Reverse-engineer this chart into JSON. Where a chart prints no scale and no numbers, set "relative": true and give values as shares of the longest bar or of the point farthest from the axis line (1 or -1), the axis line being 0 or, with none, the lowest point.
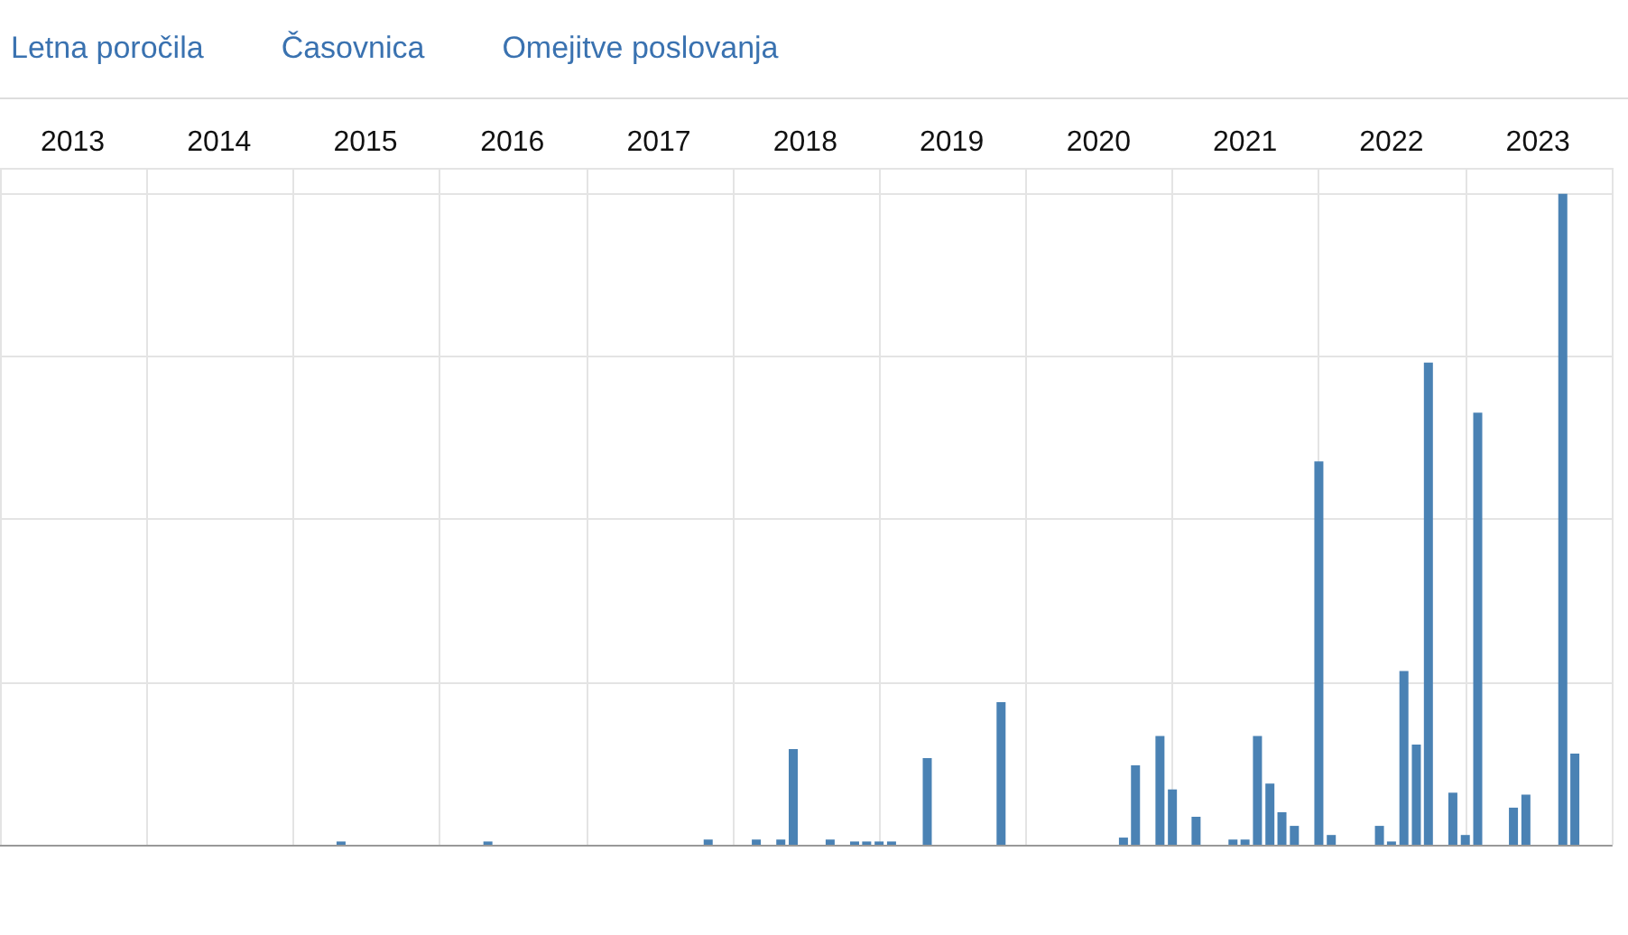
{
  "chart_data": {
    "type": "bar",
    "relative": true,
    "grid": true,
    "annotations": [
      "Letna poročila",
      "Časovnica",
      "Omejitve poslovanja"
    ],
    "x": [
      "2015-05",
      "2016-05",
      "2017-11",
      "2018-03",
      "2018-05",
      "2018-06",
      "2018-09",
      "2018-11",
      "2018-12",
      "2019-01",
      "2019-02",
      "2019-05",
      "2019-11",
      "2020-09",
      "2020-10",
      "2020-12",
      "2021-01",
      "2021-03",
      "2021-06",
      "2021-07",
      "2021-08",
      "2021-09",
      "2021-10",
      "2021-11",
      "2022-01",
      "2022-02",
      "2022-06",
      "2022-07",
      "2022-08",
      "2022-09",
      "2022-10",
      "2022-12",
      "2023-01",
      "2023-02",
      "2023-05",
      "2023-06",
      "2023-09",
      "2023-10"
    ],
    "values": [
      0.005,
      0.005,
      0.008,
      0.008,
      0.008,
      0.147,
      0.008,
      0.005,
      0.005,
      0.005,
      0.005,
      0.133,
      0.219,
      0.011,
      0.122,
      0.167,
      0.085,
      0.043,
      0.008,
      0.008,
      0.167,
      0.094,
      0.05,
      0.029,
      0.589,
      0.015,
      0.029,
      0.005,
      0.267,
      0.154,
      0.741,
      0.08,
      0.015,
      0.664,
      0.057,
      0.077,
      1.0,
      0.14
    ],
    "color": "#4a82b4",
    "xlim": [
      "2013-01",
      "2024-01"
    ],
    "xticks": [
      {
        "value": "2013",
        "label": null
      },
      {
        "value": "2014",
        "label": null
      },
      {
        "value": "2015",
        "label": null
      },
      {
        "value": "2016",
        "label": null
      },
      {
        "value": "2017",
        "label": null
      },
      {
        "value": "2018",
        "label": null
      },
      {
        "value": "2019",
        "label": null
      },
      {
        "value": "2020",
        "label": null
      },
      {
        "value": "2021",
        "label": null
      },
      {
        "value": "2022",
        "label": null
      },
      {
        "value": "2023",
        "label": null
      },
      {
        "value": "2024",
        "label": null
      },
      {
        "value": "2013-07",
        "label": "2013"
      },
      {
        "value": "2014-07",
        "label": "2014"
      },
      {
        "value": "2015-07",
        "label": "2015"
      },
      {
        "value": "2016-07",
        "label": "2016"
      },
      {
        "value": "2017-07",
        "label": "2017"
      },
      {
        "value": "2018-07",
        "label": "2018"
      },
      {
        "value": "2019-07",
        "label": "2019"
      },
      {
        "value": "2020-07",
        "label": "2020"
      },
      {
        "value": "2021-07",
        "label": "2021"
      },
      {
        "value": "2022-07",
        "label": "2022"
      },
      {
        "value": "2023-07",
        "label": "2023"
      }
    ]
  }
}
